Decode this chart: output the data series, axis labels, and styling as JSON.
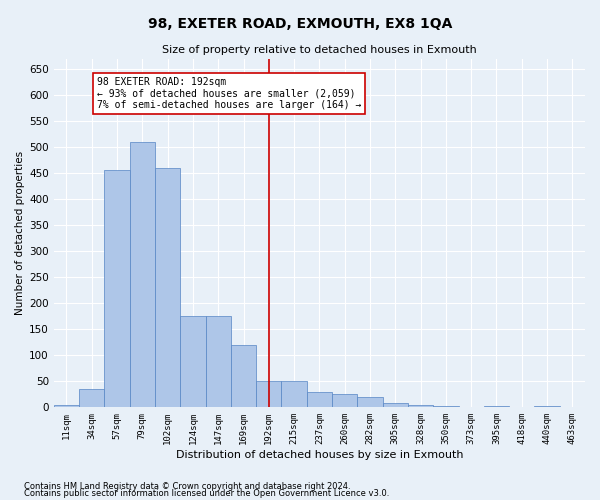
{
  "title1": "98, EXETER ROAD, EXMOUTH, EX8 1QA",
  "title2": "Size of property relative to detached houses in Exmouth",
  "xlabel": "Distribution of detached houses by size in Exmouth",
  "ylabel": "Number of detached properties",
  "categories": [
    "11sqm",
    "34sqm",
    "57sqm",
    "79sqm",
    "102sqm",
    "124sqm",
    "147sqm",
    "169sqm",
    "192sqm",
    "215sqm",
    "237sqm",
    "260sqm",
    "282sqm",
    "305sqm",
    "328sqm",
    "350sqm",
    "373sqm",
    "395sqm",
    "418sqm",
    "440sqm",
    "463sqm"
  ],
  "values": [
    5,
    35,
    455,
    510,
    460,
    175,
    175,
    120,
    50,
    50,
    30,
    25,
    20,
    8,
    5,
    2,
    0,
    2,
    0,
    2,
    0
  ],
  "bar_color": "#aec6e8",
  "bar_edge_color": "#5585c5",
  "vline_x": 8,
  "vline_color": "#cc0000",
  "annotation_text": "98 EXETER ROAD: 192sqm\n← 93% of detached houses are smaller (2,059)\n7% of semi-detached houses are larger (164) →",
  "annotation_box_color": "#ffffff",
  "annotation_box_edge_color": "#cc0000",
  "bg_color": "#e8f0f8",
  "grid_color": "#ffffff",
  "ylim": [
    0,
    670
  ],
  "footnote1": "Contains HM Land Registry data © Crown copyright and database right 2024.",
  "footnote2": "Contains public sector information licensed under the Open Government Licence v3.0."
}
